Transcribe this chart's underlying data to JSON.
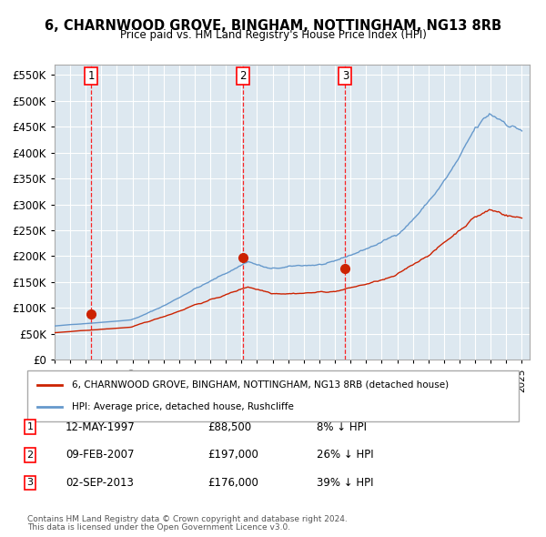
{
  "title": "6, CHARNWOOD GROVE, BINGHAM, NOTTINGHAM, NG13 8RB",
  "subtitle": "Price paid vs. HM Land Registry's House Price Index (HPI)",
  "bg_color": "#dde8f0",
  "plot_bg_color": "#dde8f0",
  "hpi_color": "#6699cc",
  "price_color": "#cc2200",
  "ylim": [
    0,
    570000
  ],
  "yticks": [
    0,
    50000,
    100000,
    150000,
    200000,
    250000,
    300000,
    350000,
    400000,
    450000,
    500000,
    550000
  ],
  "sale_prices": [
    88500,
    197000,
    176000
  ],
  "sale_labels": [
    "1",
    "2",
    "3"
  ],
  "legend_label_red": "6, CHARNWOOD GROVE, BINGHAM, NOTTINGHAM, NG13 8RB (detached house)",
  "legend_label_blue": "HPI: Average price, detached house, Rushcliffe",
  "table_entries": [
    {
      "label": "1",
      "date": "12-MAY-1997",
      "price": "£88,500",
      "hpi": "8% ↓ HPI"
    },
    {
      "label": "2",
      "date": "09-FEB-2007",
      "price": "£197,000",
      "hpi": "26% ↓ HPI"
    },
    {
      "label": "3",
      "date": "02-SEP-2013",
      "price": "£176,000",
      "hpi": "39% ↓ HPI"
    }
  ],
  "footnote1": "Contains HM Land Registry data © Crown copyright and database right 2024.",
  "footnote2": "This data is licensed under the Open Government Licence v3.0."
}
